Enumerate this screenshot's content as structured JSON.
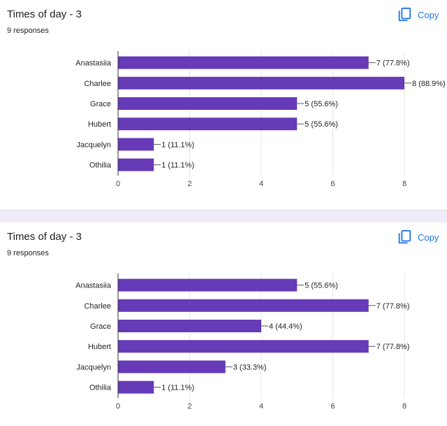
{
  "cards": [
    {
      "title": "Times of day - 3",
      "responses": "9 responses",
      "copy_label": "Copy"
    },
    {
      "title": "Times of day - 3",
      "responses": "9 responses",
      "copy_label": "Copy"
    }
  ],
  "icons": {
    "copy": "copy-icon"
  },
  "colors": {
    "bar": "#673ab7",
    "link": "#1a73e8",
    "divider": "#f0ebf8"
  },
  "chart_data": [
    {
      "type": "bar",
      "orientation": "horizontal",
      "categories": [
        "Anastasiia",
        "Charlee",
        "Grace",
        "Hubert",
        "Jacquelyn",
        "Othilia"
      ],
      "values": [
        7,
        8,
        5,
        5,
        1,
        1
      ],
      "labels": [
        "7 (77.8%)",
        "8 (88.9%)",
        "5 (55.6%)",
        "5 (55.6%)",
        "1 (11.1%)",
        "1 (11.1%)"
      ],
      "xlim": [
        0,
        8
      ],
      "xticks": [
        "0",
        "2",
        "4",
        "6",
        "8"
      ],
      "grid": true
    },
    {
      "type": "bar",
      "orientation": "horizontal",
      "categories": [
        "Anastasiia",
        "Charlee",
        "Grace",
        "Hubert",
        "Jacquelyn",
        "Othilia"
      ],
      "values": [
        5,
        7,
        4,
        7,
        3,
        1
      ],
      "labels": [
        "5 (55.6%)",
        "7 (77.8%)",
        "4 (44.4%)",
        "7 (77.8%)",
        "3 (33.3%)",
        "1 (11.1%)"
      ],
      "xlim": [
        0,
        8
      ],
      "xticks": [
        "0",
        "2",
        "4",
        "6",
        "8"
      ],
      "grid": true
    }
  ]
}
